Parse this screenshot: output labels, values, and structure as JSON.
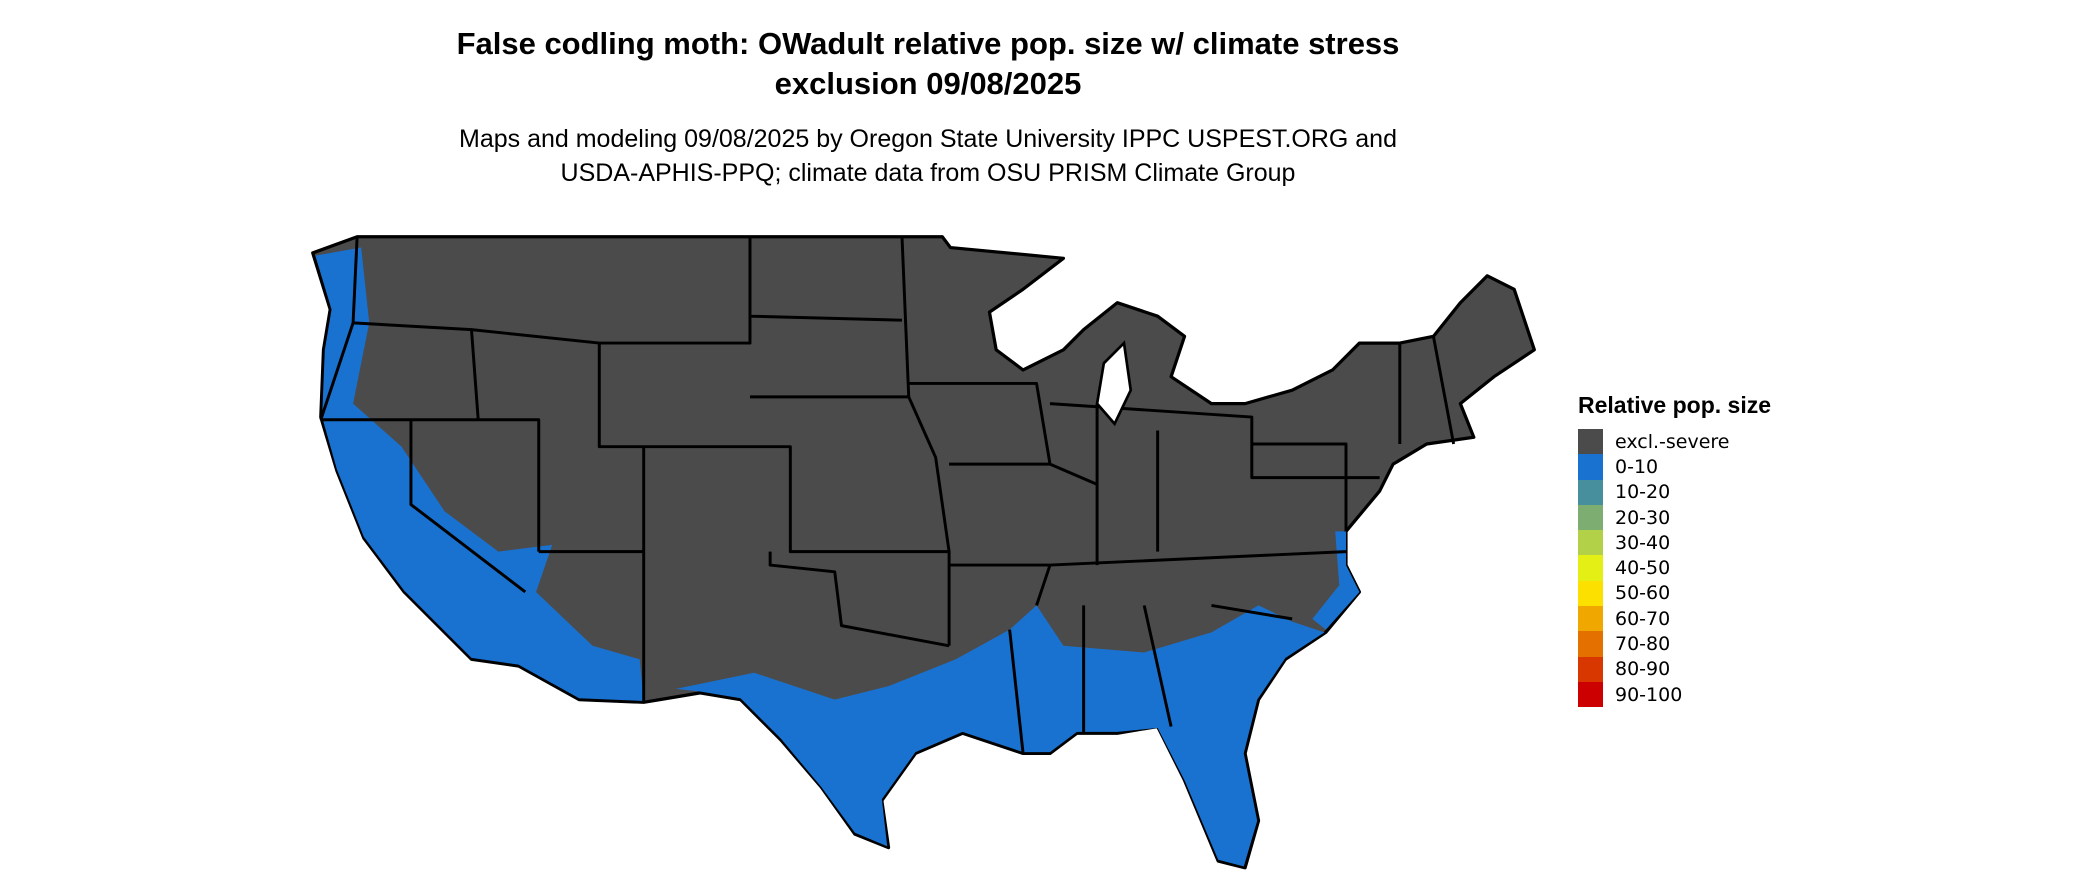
{
  "title_line1": "False codling moth: OWadult relative pop. size w/ climate stress",
  "title_line2": "exclusion 09/08/2025",
  "subtitle_line1": "Maps and modeling 09/08/2025 by Oregon State University IPPC USPEST.ORG and",
  "subtitle_line2": "USDA-APHIS-PPQ; climate data from OSU PRISM Climate Group",
  "map": {
    "region": "Contiguous United States",
    "dominant_class": "excl.-severe",
    "secondary_class": "0-10"
  },
  "legend": {
    "title": "Relative pop. size",
    "items": [
      {
        "label": "excl.-severe",
        "color": "#4b4b4b"
      },
      {
        "label": "0-10",
        "color": "#1a72d0"
      },
      {
        "label": "10-20",
        "color": "#478f9c"
      },
      {
        "label": "20-30",
        "color": "#7ead72"
      },
      {
        "label": "30-40",
        "color": "#b2d048"
      },
      {
        "label": "40-50",
        "color": "#e4ef16"
      },
      {
        "label": "50-60",
        "color": "#fbe000"
      },
      {
        "label": "60-70",
        "color": "#f0a800"
      },
      {
        "label": "70-80",
        "color": "#e47000"
      },
      {
        "label": "80-90",
        "color": "#d83800"
      },
      {
        "label": "90-100",
        "color": "#cc0000"
      }
    ]
  }
}
